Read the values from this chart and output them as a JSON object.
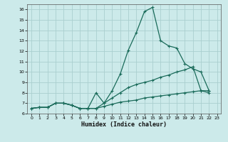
{
  "xlabel": "Humidex (Indice chaleur)",
  "background_color": "#cceaea",
  "grid_color": "#aacfcf",
  "line_color": "#1a6b5a",
  "xlim": [
    -0.5,
    23.5
  ],
  "ylim": [
    6,
    16.5
  ],
  "xticks": [
    0,
    1,
    2,
    3,
    4,
    5,
    6,
    7,
    8,
    9,
    10,
    11,
    12,
    13,
    14,
    15,
    16,
    17,
    18,
    19,
    20,
    21,
    22,
    23
  ],
  "yticks": [
    6,
    7,
    8,
    9,
    10,
    11,
    12,
    13,
    14,
    15,
    16
  ],
  "line1_x": [
    0,
    1,
    2,
    3,
    4,
    5,
    6,
    7,
    8,
    9,
    10,
    11,
    12,
    13,
    14,
    15,
    16,
    17,
    18,
    19,
    20,
    21,
    22
  ],
  "line1_y": [
    6.5,
    6.6,
    6.6,
    7.0,
    7.0,
    6.8,
    6.5,
    6.5,
    6.5,
    7.0,
    8.2,
    9.8,
    12.1,
    13.8,
    15.8,
    16.2,
    13.0,
    12.5,
    12.3,
    10.8,
    10.3,
    10.0,
    8.2
  ],
  "line2_x": [
    0,
    1,
    2,
    3,
    4,
    5,
    6,
    7,
    8,
    9,
    10,
    11,
    12,
    13,
    14,
    15,
    16,
    17,
    18,
    19,
    20,
    21,
    22
  ],
  "line2_y": [
    6.5,
    6.6,
    6.6,
    7.0,
    7.0,
    6.8,
    6.5,
    6.5,
    8.0,
    7.0,
    7.5,
    8.0,
    8.5,
    8.8,
    9.0,
    9.2,
    9.5,
    9.7,
    10.0,
    10.2,
    10.5,
    8.2,
    8.2
  ],
  "line3_x": [
    0,
    1,
    2,
    3,
    4,
    5,
    6,
    7,
    8,
    9,
    10,
    11,
    12,
    13,
    14,
    15,
    16,
    17,
    18,
    19,
    20,
    21,
    22
  ],
  "line3_y": [
    6.5,
    6.6,
    6.6,
    7.0,
    7.0,
    6.8,
    6.5,
    6.5,
    6.5,
    6.7,
    6.9,
    7.1,
    7.2,
    7.3,
    7.5,
    7.6,
    7.7,
    7.8,
    7.9,
    8.0,
    8.1,
    8.2,
    8.0
  ]
}
